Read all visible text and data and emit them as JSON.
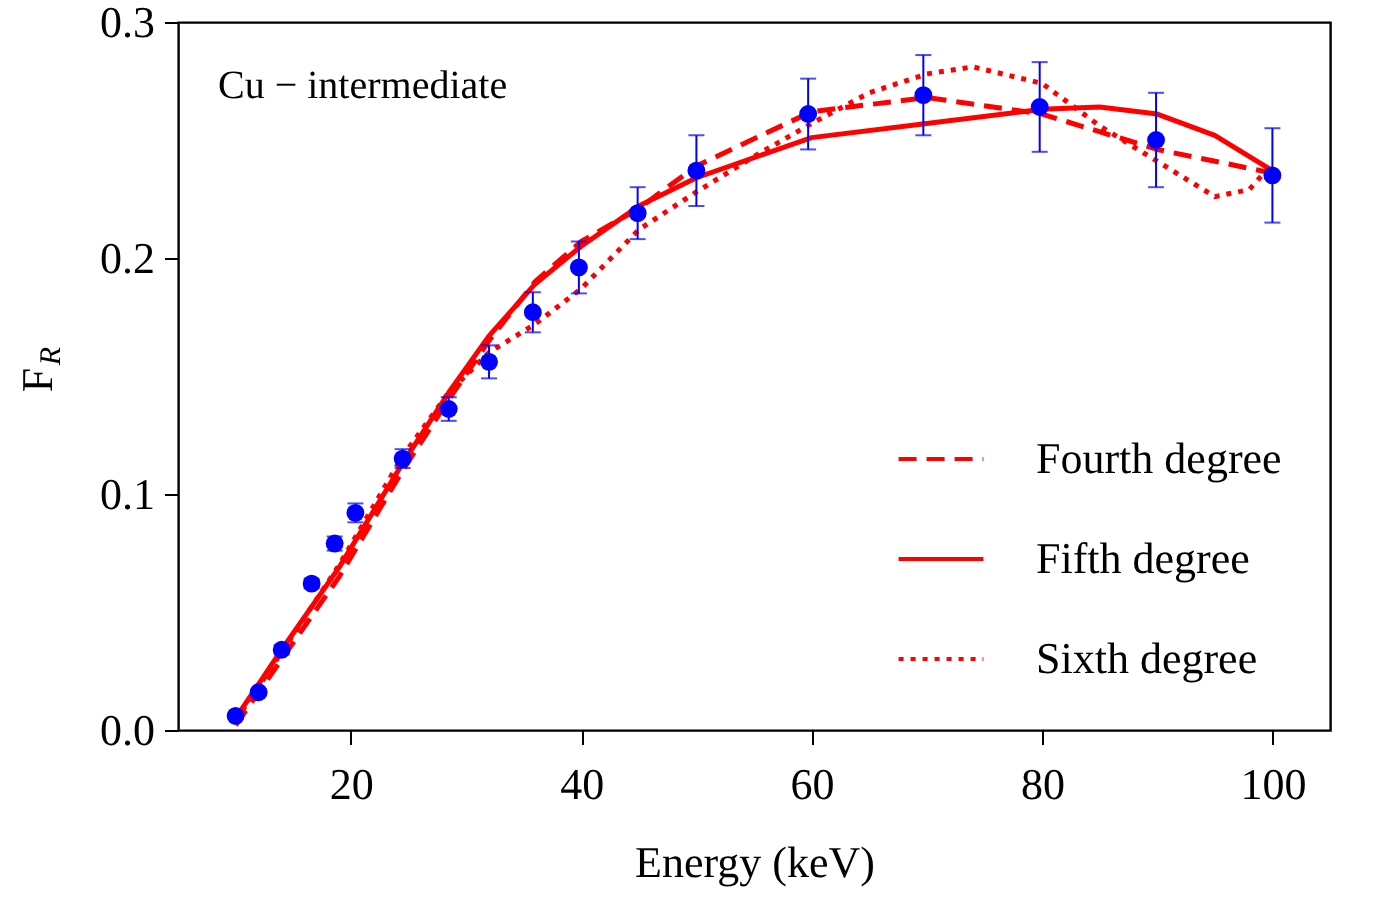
{
  "chart_data": {
    "type": "line",
    "xlabel": "Energy (keV)",
    "ylabel": "F$_{R}$",
    "xlim": [
      5,
      105
    ],
    "ylim": [
      0,
      0.3
    ],
    "xticks": [
      20,
      40,
      60,
      80,
      100
    ],
    "yticks": [
      {
        "value": 0,
        "label": "0.0"
      },
      0.1,
      0.2,
      0.3
    ],
    "grid": false,
    "legend": "bottom right",
    "annotations": [
      "Cu − intermediate"
    ],
    "series": [
      {
        "type": "scatter",
        "color": "#0000ff",
        "marker": "circle",
        "x": [
          10,
          12,
          14,
          16.6,
          18.6,
          20.4,
          24.5,
          28.5,
          32,
          35.8,
          39.8,
          44.9,
          50,
          59.7,
          69.7,
          79.8,
          89.9,
          100
        ],
        "values": [
          0.006,
          0.016,
          0.034,
          0.062,
          0.079,
          0.092,
          0.115,
          0.136,
          0.156,
          0.177,
          0.196,
          0.219,
          0.237,
          0.261,
          0.269,
          0.264,
          0.25,
          0.235
        ],
        "errors": [
          0.001,
          0.001,
          0.002,
          0.002,
          0.003,
          0.004,
          0.004,
          0.005,
          0.007,
          0.0085,
          0.011,
          0.011,
          0.015,
          0.015,
          0.017,
          0.019,
          0.02,
          0.02
        ]
      },
      {
        "name": "Fourth degree",
        "color": "#ff0000",
        "line_style": "dashed",
        "x": [
          10,
          14,
          19,
          24.5,
          28.5,
          32,
          36,
          40,
          45,
          50,
          60,
          70,
          80,
          90,
          100
        ],
        "values": [
          0.002,
          0.03,
          0.065,
          0.11,
          0.14,
          0.165,
          0.19,
          0.207,
          0.221,
          0.239,
          0.262,
          0.268,
          0.261,
          0.246,
          0.236
        ]
      },
      {
        "name": "Fifth degree",
        "color": "#ff0000",
        "line_style": "solid",
        "x": [
          10,
          14,
          19,
          24.5,
          28.5,
          32,
          36,
          40,
          45,
          50,
          60,
          70,
          80,
          85,
          90,
          95,
          100
        ],
        "values": [
          0.005,
          0.034,
          0.069,
          0.113,
          0.143,
          0.167,
          0.189,
          0.205,
          0.222,
          0.234,
          0.251,
          0.257,
          0.263,
          0.264,
          0.261,
          0.252,
          0.237
        ]
      },
      {
        "name": "Sixth degree",
        "color": "#ff0000",
        "line_style": "dotted",
        "x": [
          10,
          14,
          19,
          24.5,
          28.5,
          32,
          36,
          40,
          45,
          50,
          55,
          60,
          65,
          70,
          74,
          80,
          85,
          90,
          95,
          98,
          100
        ],
        "values": [
          0.004,
          0.033,
          0.07,
          0.116,
          0.143,
          0.16,
          0.172,
          0.187,
          0.212,
          0.228,
          0.243,
          0.257,
          0.27,
          0.278,
          0.281,
          0.274,
          0.256,
          0.241,
          0.226,
          0.229,
          0.24
        ]
      }
    ]
  }
}
